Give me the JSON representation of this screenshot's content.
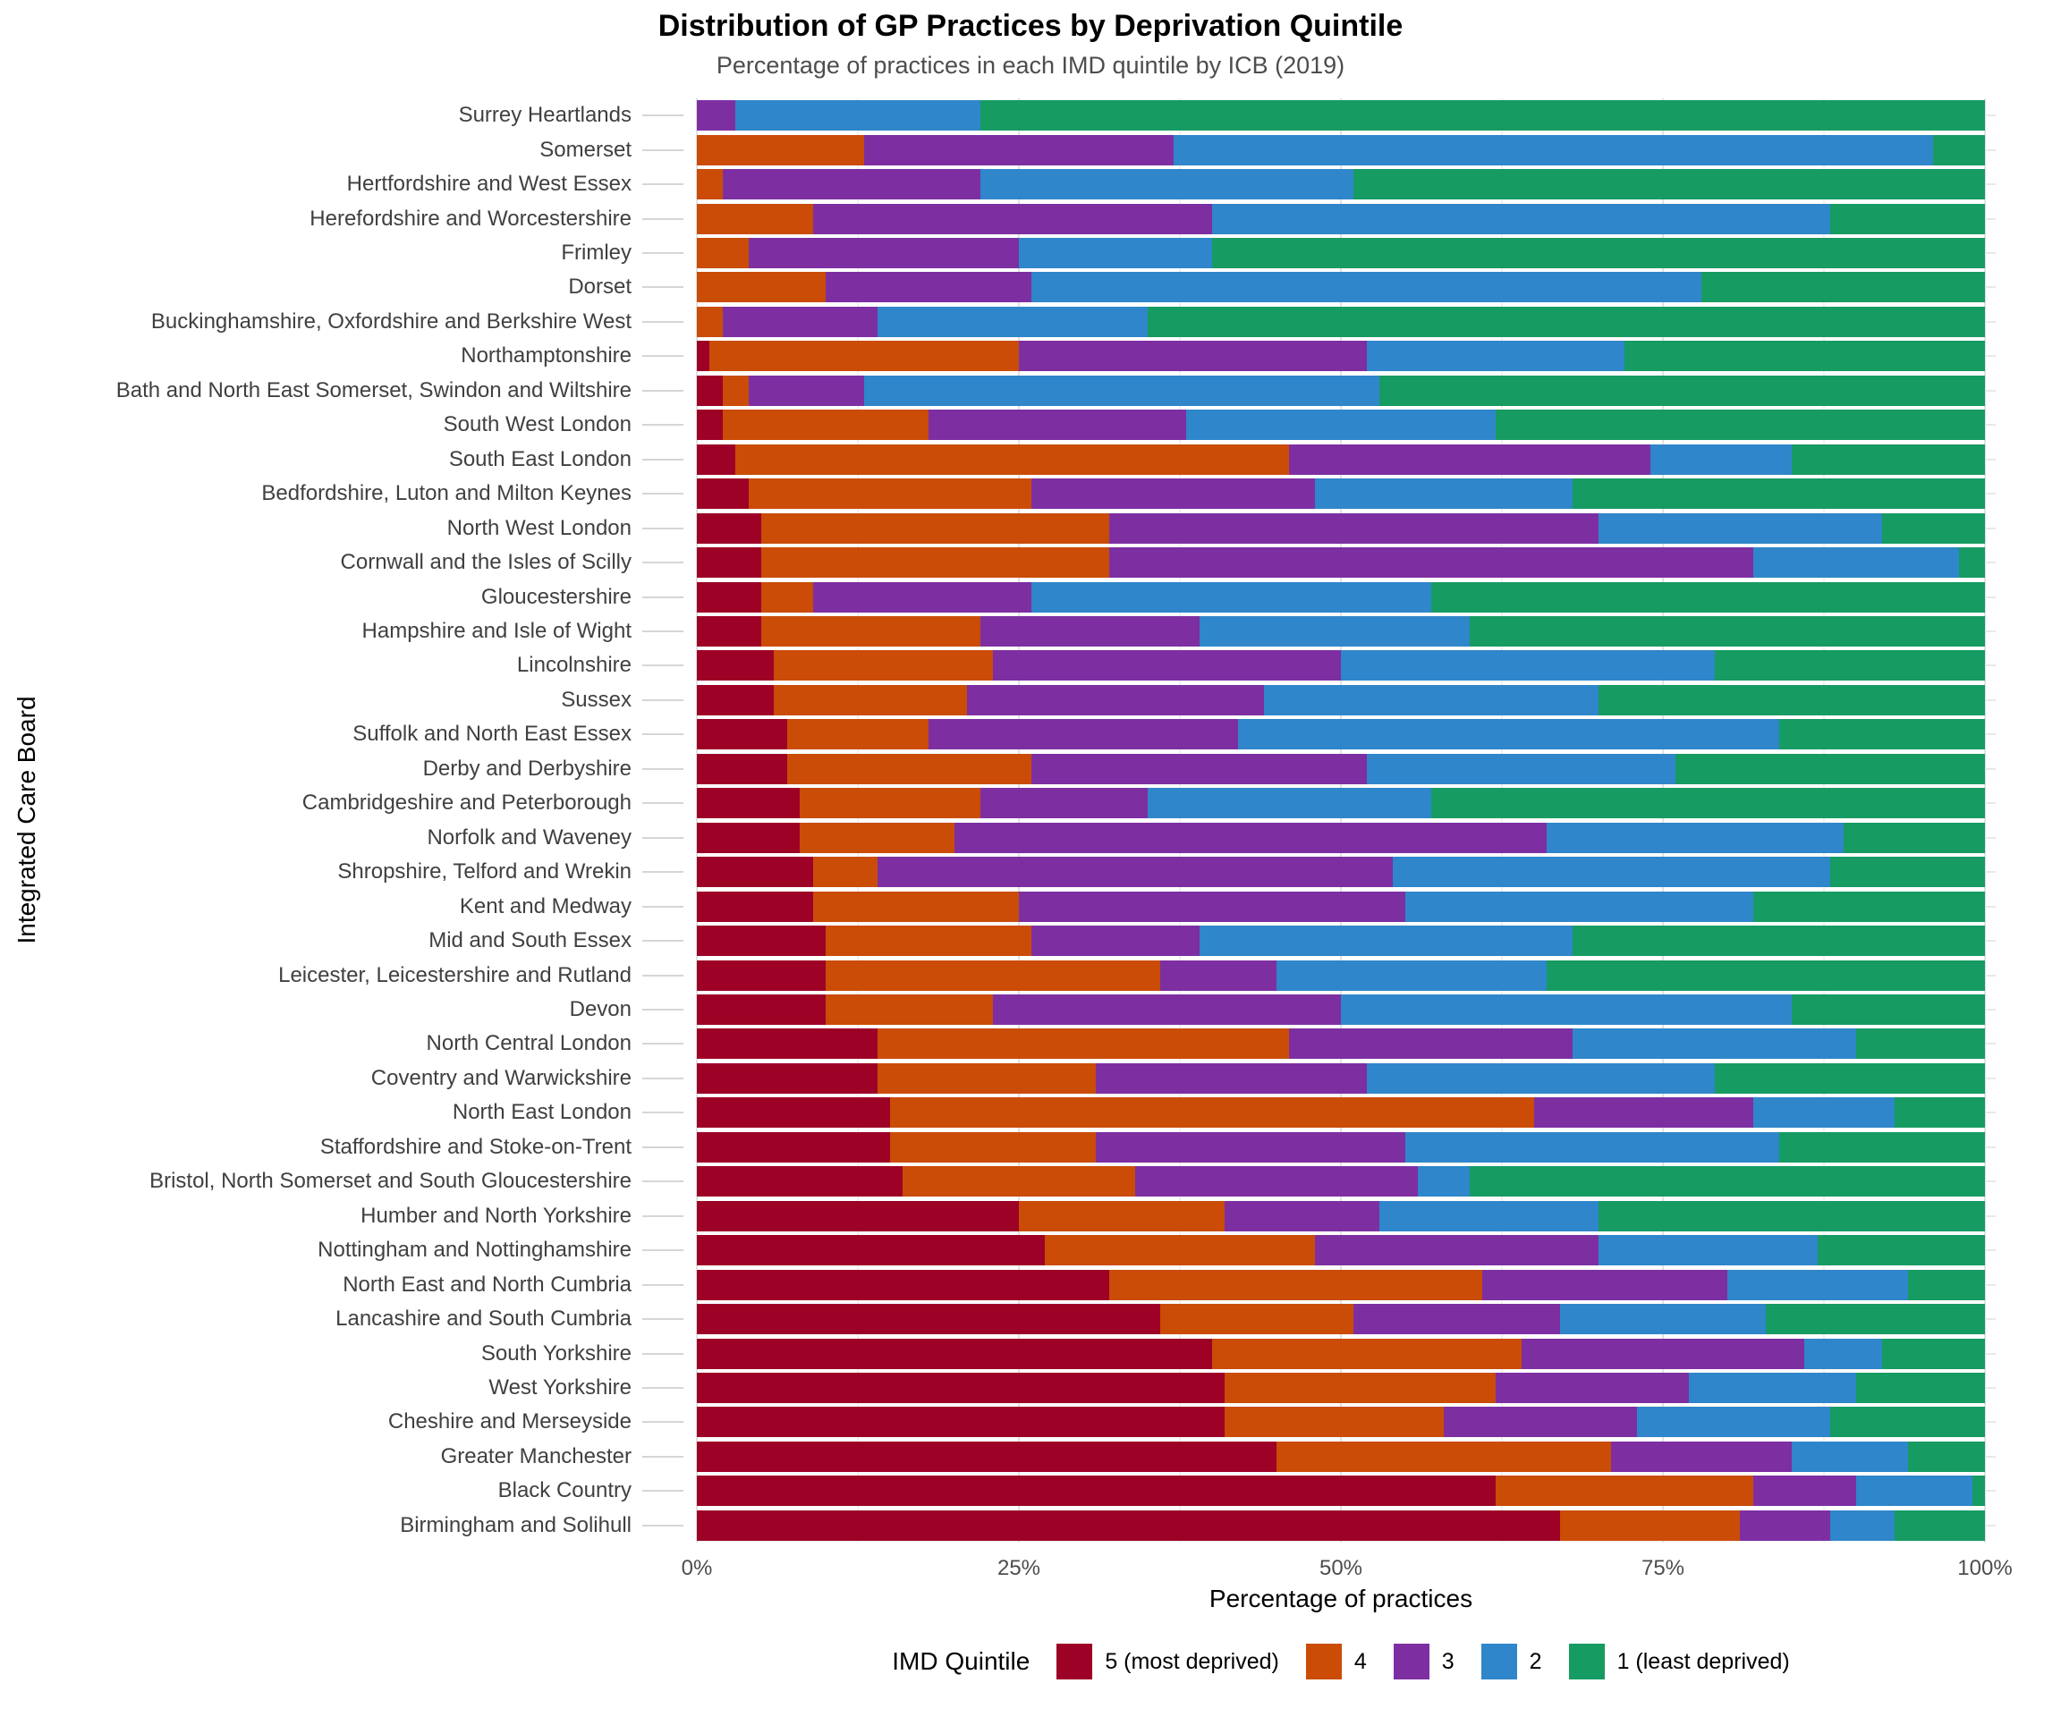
{
  "title": "Distribution of GP Practices by Deprivation Quintile",
  "subtitle": "Percentage of practices in each IMD quintile by ICB (2019)",
  "x_axis": {
    "label": "Percentage of practices",
    "ticks": [
      "0%",
      "25%",
      "50%",
      "75%",
      "100%"
    ]
  },
  "y_axis": {
    "label": "Integrated Care Board"
  },
  "legend": {
    "title": "IMD Quintile",
    "entries": [
      {
        "label": "5 (most deprived)",
        "color": "#9d0226"
      },
      {
        "label": "4",
        "color": "#ca4c07"
      },
      {
        "label": "3",
        "color": "#7d2fa2"
      },
      {
        "label": "2",
        "color": "#2f86ca"
      },
      {
        "label": "1 (least deprived)",
        "color": "#169b63"
      }
    ]
  },
  "chart_data": {
    "type": "bar",
    "orientation": "horizontal",
    "stacked": true,
    "title": "Distribution of GP Practices by Deprivation Quintile",
    "subtitle": "Percentage of practices in each IMD quintile by ICB (2019)",
    "xlabel": "Percentage of practices",
    "ylabel": "Integrated Care Board",
    "xlim": [
      0,
      100
    ],
    "x_ticks_percent": [
      0,
      25,
      50,
      75,
      100
    ],
    "x_minor_ticks_percent": [
      12.5,
      37.5,
      62.5,
      87.5
    ],
    "grid": true,
    "legend_position": "bottom",
    "categories": [
      "Surrey Heartlands",
      "Somerset",
      "Hertfordshire and West Essex",
      "Herefordshire and Worcestershire",
      "Frimley",
      "Dorset",
      "Buckinghamshire, Oxfordshire and Berkshire West",
      "Northamptonshire",
      "Bath and North East Somerset, Swindon and Wiltshire",
      "South West London",
      "South East London",
      "Bedfordshire, Luton and Milton Keynes",
      "North West London",
      "Cornwall and the Isles of Scilly",
      "Gloucestershire",
      "Hampshire and Isle of Wight",
      "Lincolnshire",
      "Sussex",
      "Suffolk and North East Essex",
      "Derby and Derbyshire",
      "Cambridgeshire and Peterborough",
      "Norfolk and Waveney",
      "Shropshire, Telford and Wrekin",
      "Kent and Medway",
      "Mid and South Essex",
      "Leicester, Leicestershire and Rutland",
      "Devon",
      "North Central London",
      "Coventry and Warwickshire",
      "North East London",
      "Staffordshire and Stoke-on-Trent",
      "Bristol, North Somerset and South Gloucestershire",
      "Humber and North Yorkshire",
      "Nottingham and Nottinghamshire",
      "North East and North Cumbria",
      "Lancashire and South Cumbria",
      "South Yorkshire",
      "West Yorkshire",
      "Cheshire and Merseyside",
      "Greater Manchester",
      "Black Country",
      "Birmingham and Solihull"
    ],
    "series": [
      {
        "name": "5 (most deprived)",
        "color": "#9d0226",
        "values": [
          0,
          0,
          0,
          0,
          0,
          0,
          0,
          1,
          2,
          2,
          3,
          4,
          5,
          5,
          5,
          5,
          6,
          6,
          7,
          7,
          8,
          8,
          9,
          9,
          10,
          10,
          10,
          14,
          14,
          15,
          15,
          16,
          25,
          27,
          32,
          36,
          40,
          41,
          41,
          45,
          62,
          67
        ]
      },
      {
        "name": "4",
        "color": "#ca4c07",
        "values": [
          0,
          13,
          2,
          9,
          4,
          10,
          2,
          24,
          2,
          16,
          43,
          22,
          27,
          27,
          4,
          17,
          17,
          15,
          11,
          19,
          14,
          12,
          5,
          16,
          16,
          26,
          13,
          32,
          17,
          50,
          16,
          18,
          16,
          21,
          29,
          15,
          24,
          21,
          17,
          26,
          20,
          14
        ]
      },
      {
        "name": "3",
        "color": "#7d2fa2",
        "values": [
          3,
          24,
          20,
          31,
          21,
          16,
          12,
          27,
          9,
          20,
          28,
          22,
          38,
          50,
          17,
          17,
          27,
          23,
          24,
          26,
          13,
          46,
          40,
          30,
          13,
          9,
          27,
          22,
          21,
          17,
          24,
          22,
          12,
          22,
          19,
          16,
          22,
          15,
          15,
          14,
          8,
          7
        ]
      },
      {
        "name": "2",
        "color": "#2f86ca",
        "values": [
          19,
          59,
          29,
          48,
          15,
          52,
          21,
          20,
          40,
          24,
          11,
          20,
          22,
          16,
          31,
          21,
          29,
          26,
          42,
          24,
          22,
          23,
          34,
          27,
          29,
          21,
          35,
          22,
          27,
          11,
          29,
          4,
          17,
          17,
          14,
          16,
          6,
          13,
          15,
          9,
          9,
          5
        ]
      },
      {
        "name": "1 (least deprived)",
        "color": "#169b63",
        "values": [
          78,
          4,
          49,
          12,
          60,
          22,
          65,
          28,
          47,
          38,
          15,
          32,
          8,
          2,
          43,
          40,
          21,
          30,
          16,
          24,
          43,
          11,
          12,
          18,
          32,
          34,
          15,
          10,
          21,
          7,
          16,
          40,
          30,
          13,
          6,
          17,
          8,
          10,
          12,
          6,
          1,
          7
        ]
      }
    ]
  }
}
